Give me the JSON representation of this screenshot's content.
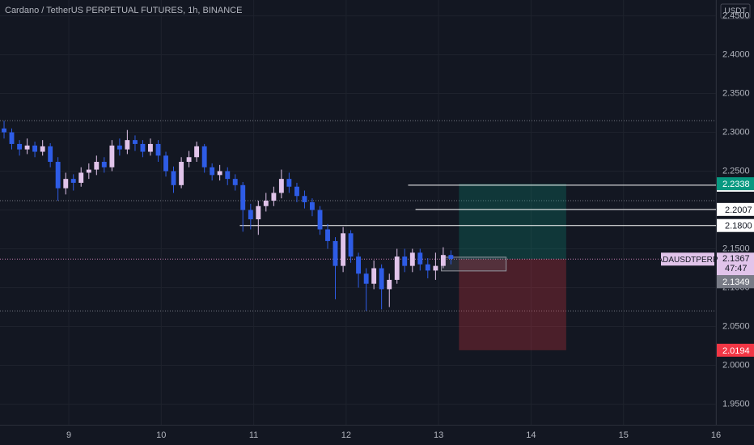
{
  "chart_data": {
    "type": "candlestick",
    "title": "Cardano / TetherUS PERPETUAL FUTURES, 1h, BINANCE",
    "currency": "USDT",
    "up_color": "#e1c4ea",
    "down_color": "#2e5ce6",
    "grid": true,
    "xlim": [
      8.256,
      16
    ],
    "xticks": [
      9,
      10,
      11,
      12,
      13,
      14,
      15,
      16
    ],
    "ylim": [
      1.9234,
      2.4704
    ],
    "yticks": [
      {
        "value": 1.95,
        "label": "1.9500"
      },
      {
        "value": 2.0,
        "label": "2.0000"
      },
      {
        "value": 2.05,
        "label": "2.0500"
      },
      {
        "value": 2.1,
        "label": "2.1000"
      },
      {
        "value": 2.15,
        "label": "2.1500"
      },
      {
        "value": 2.2,
        "label": "2.2000"
      },
      {
        "value": 2.25,
        "label": "2.2500"
      },
      {
        "value": 2.3,
        "label": "2.3000"
      },
      {
        "value": 2.35,
        "label": "2.3500"
      },
      {
        "value": 2.4,
        "label": "2.4000"
      },
      {
        "value": 2.45,
        "label": "2.4500"
      }
    ],
    "x": [
      8.3,
      8.383,
      8.467,
      8.55,
      8.633,
      8.717,
      8.8,
      8.883,
      8.967,
      9.05,
      9.133,
      9.217,
      9.3,
      9.383,
      9.467,
      9.55,
      9.633,
      9.717,
      9.8,
      9.883,
      9.967,
      10.05,
      10.133,
      10.217,
      10.3,
      10.383,
      10.467,
      10.55,
      10.633,
      10.717,
      10.8,
      10.883,
      10.967,
      11.05,
      11.133,
      11.217,
      11.3,
      11.383,
      11.467,
      11.55,
      11.633,
      11.717,
      11.8,
      11.883,
      11.967,
      12.05,
      12.133,
      12.217,
      12.3,
      12.383,
      12.467,
      12.55,
      12.633,
      12.717,
      12.8,
      12.883,
      12.967,
      13.05,
      13.133
    ],
    "open": [
      2.305,
      2.3,
      2.285,
      2.278,
      2.283,
      2.275,
      2.282,
      2.262,
      2.228,
      2.24,
      2.235,
      2.248,
      2.252,
      2.262,
      2.255,
      2.283,
      2.278,
      2.29,
      2.285,
      2.275,
      2.285,
      2.27,
      2.25,
      2.232,
      2.262,
      2.268,
      2.282,
      2.255,
      2.245,
      2.25,
      2.24,
      2.232,
      2.2,
      2.188,
      2.205,
      2.212,
      2.222,
      2.24,
      2.23,
      2.218,
      2.21,
      2.2,
      2.175,
      2.16,
      2.128,
      2.17,
      2.14,
      2.118,
      2.105,
      2.125,
      2.098,
      2.11,
      2.14,
      2.128,
      2.145,
      2.13,
      2.122,
      2.128,
      2.142
    ],
    "high": [
      2.315,
      2.305,
      2.29,
      2.292,
      2.288,
      2.29,
      2.286,
      2.268,
      2.248,
      2.246,
      2.255,
      2.26,
      2.27,
      2.268,
      2.29,
      2.292,
      2.303,
      2.296,
      2.29,
      2.292,
      2.29,
      2.275,
      2.256,
      2.268,
      2.276,
      2.288,
      2.285,
      2.26,
      2.258,
      2.255,
      2.246,
      2.236,
      2.208,
      2.212,
      2.222,
      2.23,
      2.252,
      2.248,
      2.235,
      2.225,
      2.215,
      2.205,
      2.182,
      2.165,
      2.178,
      2.174,
      2.145,
      2.125,
      2.135,
      2.13,
      2.118,
      2.15,
      2.15,
      2.15,
      2.15,
      2.138,
      2.145,
      2.152,
      2.148
    ],
    "low": [
      2.292,
      2.278,
      2.27,
      2.272,
      2.268,
      2.27,
      2.255,
      2.212,
      2.22,
      2.225,
      2.23,
      2.24,
      2.245,
      2.248,
      2.25,
      2.27,
      2.272,
      2.276,
      2.268,
      2.27,
      2.262,
      2.243,
      2.222,
      2.228,
      2.255,
      2.262,
      2.248,
      2.238,
      2.238,
      2.232,
      2.225,
      2.172,
      2.175,
      2.168,
      2.198,
      2.205,
      2.215,
      2.222,
      2.21,
      2.202,
      2.192,
      2.168,
      2.15,
      2.085,
      2.12,
      2.132,
      2.1,
      2.07,
      2.098,
      2.072,
      2.075,
      2.105,
      2.12,
      2.12,
      2.122,
      2.112,
      2.11,
      2.125,
      2.13
    ],
    "close": [
      2.3,
      2.285,
      2.278,
      2.283,
      2.275,
      2.282,
      2.262,
      2.228,
      2.24,
      2.235,
      2.248,
      2.252,
      2.262,
      2.255,
      2.283,
      2.278,
      2.29,
      2.285,
      2.275,
      2.285,
      2.27,
      2.25,
      2.232,
      2.262,
      2.268,
      2.282,
      2.255,
      2.245,
      2.25,
      2.24,
      2.232,
      2.2,
      2.188,
      2.205,
      2.212,
      2.222,
      2.24,
      2.23,
      2.218,
      2.21,
      2.2,
      2.175,
      2.16,
      2.128,
      2.17,
      2.14,
      2.118,
      2.105,
      2.125,
      2.098,
      2.11,
      2.14,
      2.128,
      2.145,
      2.13,
      2.122,
      2.128,
      2.142,
      2.137
    ],
    "dotted_levels": [
      2.315,
      2.212,
      2.07
    ],
    "horizontal_lines": [
      {
        "price": {
          "value": 2.2319,
          "label": "2.2319"
        },
        "start": 12.67
      },
      {
        "price": {
          "value": 2.2007,
          "label": "2.2007"
        },
        "start": 12.75
      },
      {
        "price": {
          "value": 2.18,
          "label": "2.1800"
        },
        "start": 10.85
      }
    ],
    "position": {
      "start": 13.22,
      "end": 14.38,
      "target": {
        "value": 2.2338,
        "label": "2.2338"
      },
      "entry": {
        "value": 2.1367,
        "label": "2.1367"
      },
      "stop": {
        "value": 2.0194,
        "label": "2.0194"
      }
    },
    "selection_box": {
      "start": 13.03,
      "end": 13.73,
      "top": 2.1392,
      "bottom": 2.1215
    },
    "symbol": "ADAUSDTPERP",
    "countdown": "47:47",
    "last_price": {
      "value": 2.1349,
      "label": "2.1349"
    }
  }
}
